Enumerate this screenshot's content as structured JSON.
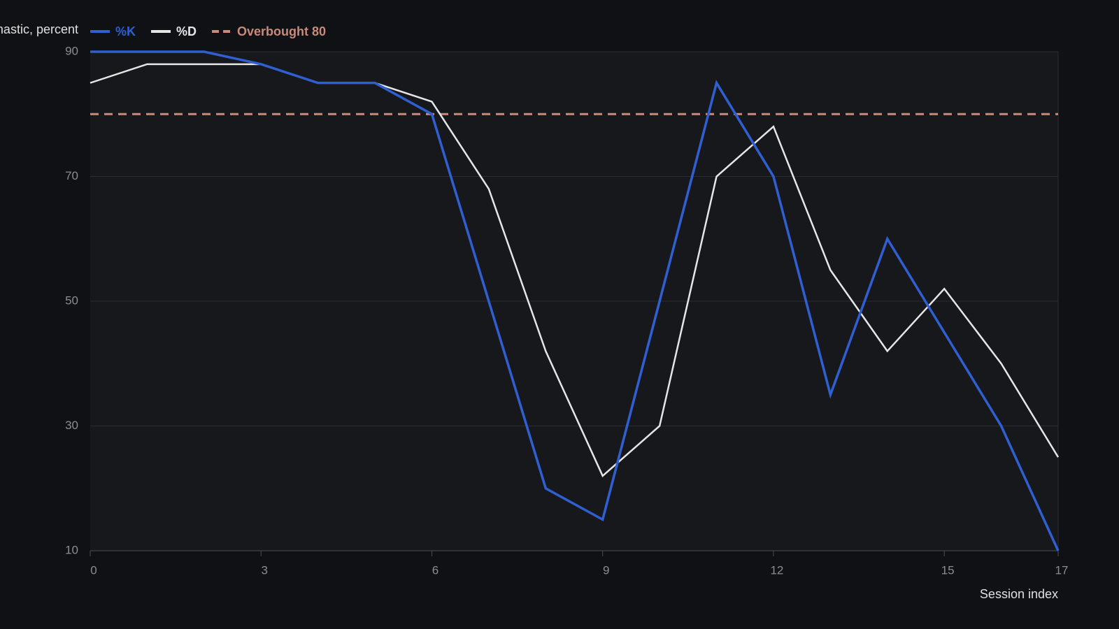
{
  "chart_data": {
    "type": "line",
    "y_label": "Stochastic, percent",
    "x_label": "Session index",
    "x": [
      0,
      1,
      2,
      3,
      4,
      5,
      6,
      7,
      8,
      9,
      10,
      11,
      12,
      13,
      14,
      15,
      16,
      17
    ],
    "series": [
      {
        "name": "%K",
        "color": "#2f5fd0",
        "values": [
          90,
          90,
          90,
          88,
          85,
          85,
          80,
          50,
          20,
          15,
          50,
          85,
          70,
          35,
          60,
          45,
          30,
          10
        ]
      },
      {
        "name": "%D",
        "color": "#e6e6e6",
        "values": [
          85,
          88,
          88,
          88,
          85,
          85,
          82,
          68,
          42,
          22,
          30,
          70,
          78,
          55,
          42,
          52,
          40,
          25
        ]
      }
    ],
    "reference_lines": [
      {
        "name": "Overbought 80",
        "value": 80,
        "color": "#c98a7c",
        "dashed": true
      }
    ],
    "xlim": [
      0,
      17
    ],
    "xticks": [
      0,
      3,
      6,
      9,
      12,
      15,
      17
    ],
    "ylim": [
      10,
      90
    ],
    "yticks": [
      10,
      30,
      50,
      70,
      90
    ],
    "grid": true
  }
}
